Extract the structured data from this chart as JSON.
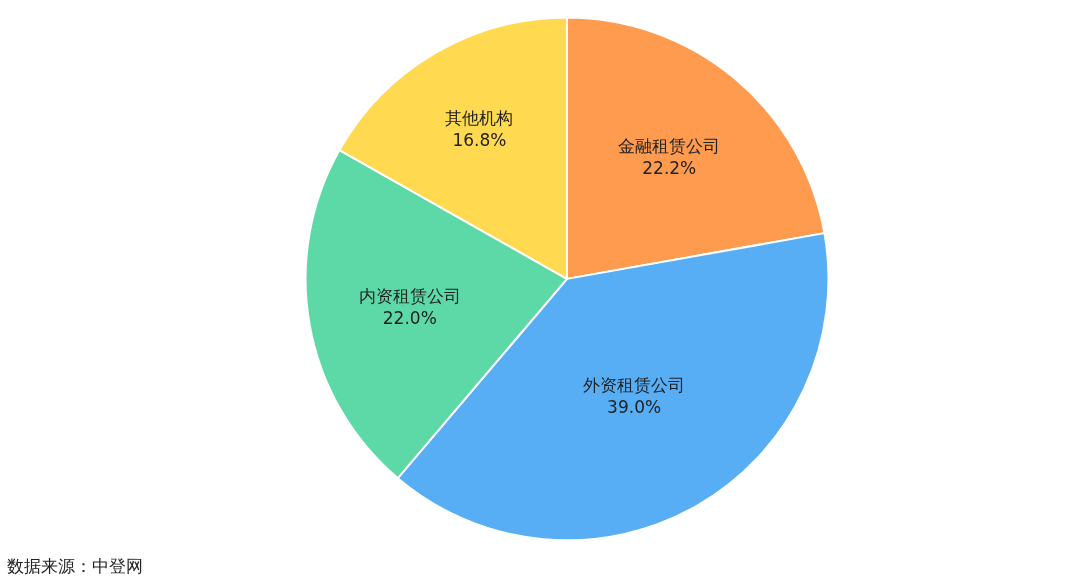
{
  "chart_data": {
    "type": "pie",
    "categories": [
      "金融租赁公司",
      "外资租赁公司",
      "内资租赁公司",
      "其他机构"
    ],
    "values": [
      22.2,
      39.0,
      22.0,
      16.8
    ],
    "value_labels": [
      "22.2%",
      "39.0%",
      "22.0%",
      "16.8%"
    ],
    "colors": [
      "#ff9b4e",
      "#58aef5",
      "#5dd9a8",
      "#ffda50"
    ],
    "legend": false,
    "annotations": [
      "数据来源：中登网"
    ]
  }
}
